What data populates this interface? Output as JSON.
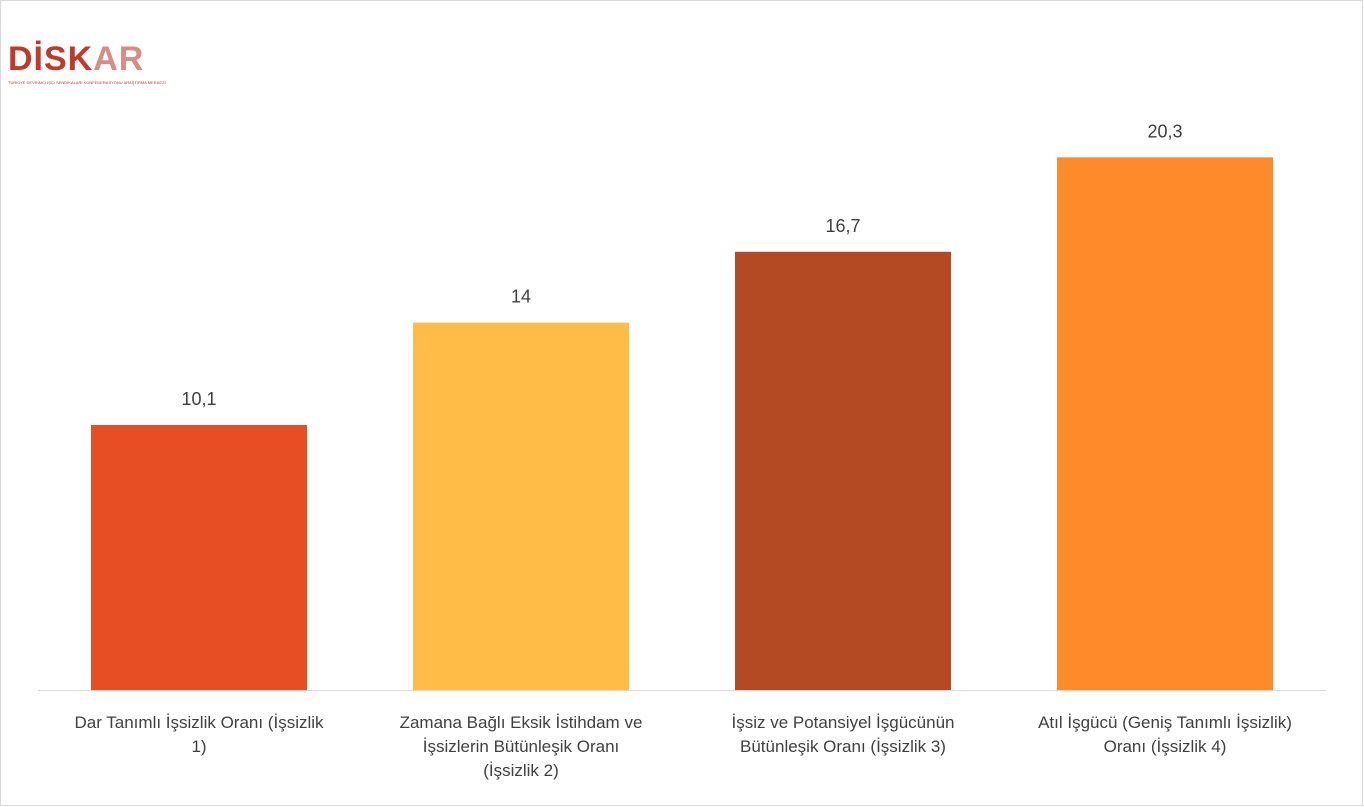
{
  "logo": {
    "brand": "DİSK",
    "brand_tail": "AR",
    "tagline": "TÜRKİYE DEVRİMCİ İŞÇİ SENDİKALARI KONFEDERASYONU ARAŞTIRMA MERKEZİ"
  },
  "chart_data": {
    "type": "bar",
    "categories": [
      [
        "Dar Tanımlı İşsizlik Oranı (İşsizlik",
        "1)"
      ],
      [
        "Zamana Bağlı Eksik İstihdam ve",
        "İşsizlerin Bütünleşik Oranı",
        "(İşsizlik 2)"
      ],
      [
        "İşsiz ve Potansiyel İşgücünün",
        "Bütünleşik Oranı (İşsizlik 3)"
      ],
      [
        "Atıl İşgücü (Geniş Tanımlı İşsizlik)",
        "Oranı (İşsizlik 4)"
      ]
    ],
    "values": [
      10.1,
      14,
      16.7,
      20.3
    ],
    "value_labels": [
      "10,1",
      "14",
      "16,7",
      "20,3"
    ],
    "colors": [
      "#e84e24",
      "#ffbc47",
      "#b44a24",
      "#ff8a29"
    ],
    "ylim": [
      0,
      22
    ],
    "grid": false,
    "legend": "none"
  }
}
